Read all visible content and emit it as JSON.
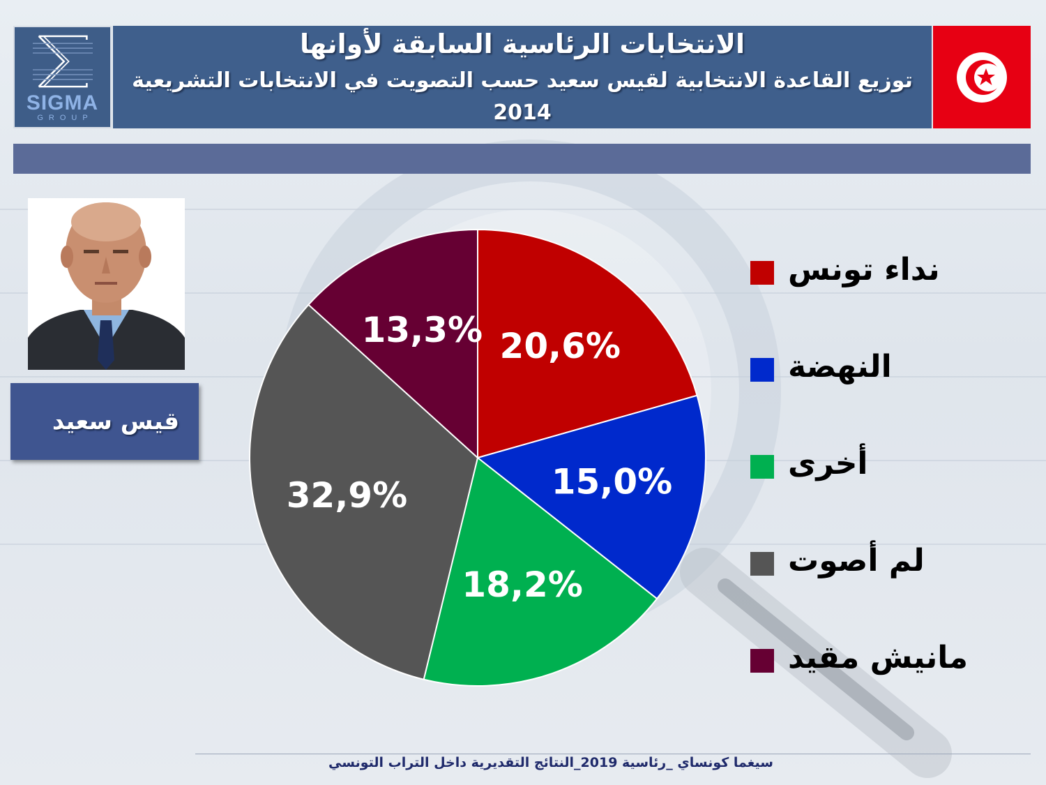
{
  "header": {
    "title": "الانتخابات الرئاسية السابقة لأوانها",
    "subtitle": "توزيع القاعدة الانتخابية لقيس سعيد حسب التصويت في الانتخابات التشريعية 2014"
  },
  "logo": {
    "word": "SIGMA",
    "group": "GROUP",
    "icon": "sigma-logo-icon"
  },
  "flag": {
    "icon": "tunisia-flag-icon"
  },
  "candidate": {
    "name": "قيس سعيد",
    "portrait": "candidate-portrait"
  },
  "footer": {
    "text": "سيغما كونساي _رئاسية 2019_النتائج التقديرية داخل التراب التونسي"
  },
  "colors": {
    "header_bg": "#3f5f8c",
    "band": "#5b6b98",
    "flag_red": "#e70013"
  },
  "chart_data": {
    "type": "pie",
    "start_angle_deg": 0,
    "direction": "clockwise",
    "slices": [
      {
        "label": "نداء تونس",
        "value": 20.6,
        "display": "20,6%",
        "color": "#c00000"
      },
      {
        "label": "النهضة",
        "value": 15.0,
        "display": "15,0%",
        "color": "#0029cc"
      },
      {
        "label": "أخرى",
        "value": 18.2,
        "display": "18,2%",
        "color": "#00b050"
      },
      {
        "label": "لم أصوت",
        "value": 32.9,
        "display": "32,9%",
        "color": "#555555"
      },
      {
        "label": "مانيش مقيد",
        "value": 13.3,
        "display": "13,3%",
        "color": "#660033"
      }
    ],
    "legend_position": "right"
  }
}
